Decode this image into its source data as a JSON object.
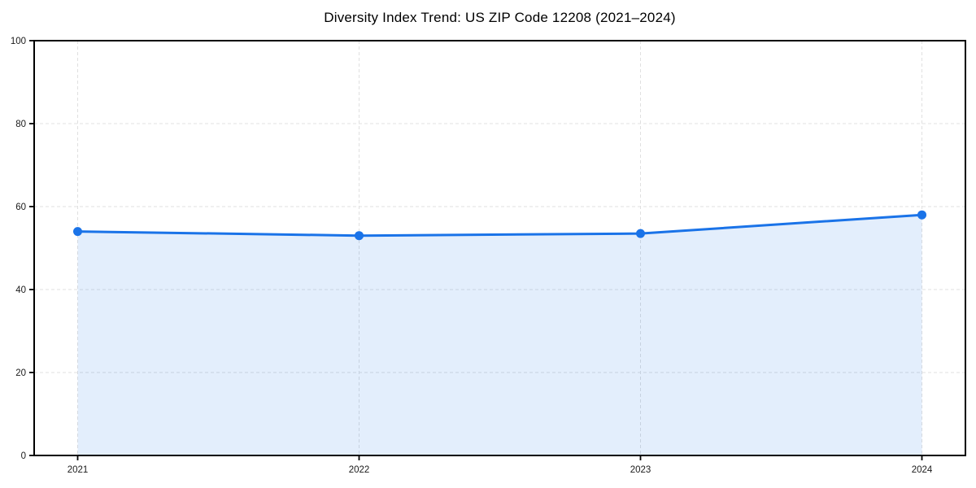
{
  "chart_data": {
    "type": "line",
    "title": "Diversity Index Trend: US ZIP Code 12208 (2021–2024)",
    "series_name": "Diversity Index",
    "categories": [
      "2021",
      "2022",
      "2023",
      "2024"
    ],
    "values": [
      54,
      53,
      53.5,
      58
    ],
    "xlabel": "",
    "ylabel": "",
    "ylim": [
      0,
      100
    ],
    "yticks": [
      0,
      20,
      40,
      60,
      80,
      100
    ],
    "grid": true,
    "grid_style": "dashed",
    "area_fill": true,
    "legend": "none",
    "colors": {
      "line": "#1a73e8",
      "marker": "#1a73e8",
      "area": "rgba(26,115,232,0.12)",
      "grid": "#e0e0e0",
      "axis": "#000000",
      "tick_text": "#1a1a1a",
      "background": "#ffffff"
    }
  }
}
